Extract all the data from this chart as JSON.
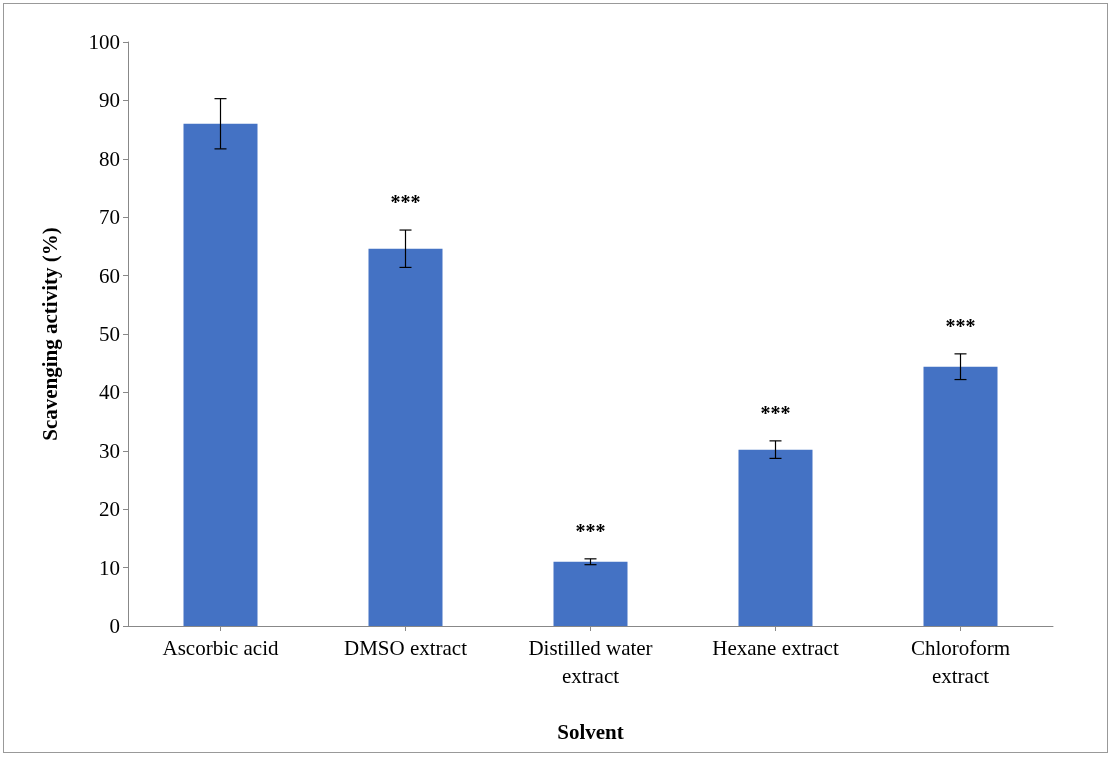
{
  "chart_data": {
    "type": "bar",
    "xlabel": "Solvent",
    "ylabel": "Scavenging activity (%)",
    "categories": [
      "Ascorbic acid",
      "DMSO extract",
      "Distilled water\nextract",
      "Hexane extract",
      "Chloroform\nextract"
    ],
    "values": [
      86,
      64.6,
      11,
      30.2,
      44.4
    ],
    "errors": [
      4.3,
      3.2,
      0.5,
      1.5,
      2.2
    ],
    "color": "#4472c4",
    "ylim": [
      0,
      100
    ],
    "yticks": [
      0,
      10,
      20,
      30,
      40,
      50,
      60,
      70,
      80,
      90,
      100
    ],
    "grid": false,
    "annotations": [
      "***",
      "***",
      "***",
      "***"
    ]
  }
}
